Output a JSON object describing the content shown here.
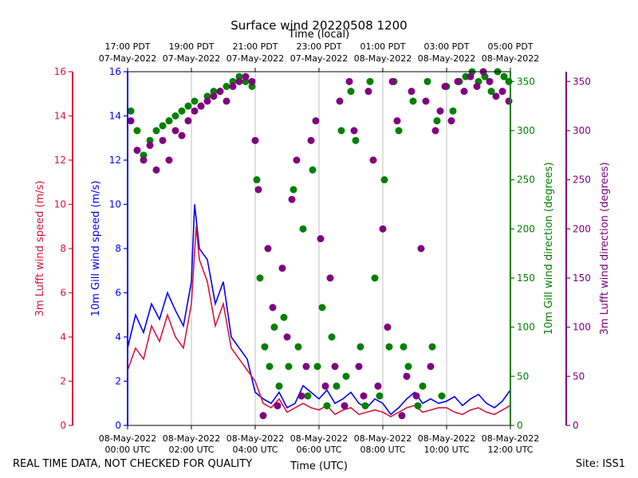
{
  "chart_data": {
    "type": "scatter",
    "title": "Surface wind 20220508 1200",
    "top_xlabel": "Time (local)",
    "xlabel": "Time (UTC)",
    "x_unit": "hours since 08-May-2022 00:00 UTC",
    "xlim": [
      0,
      12
    ],
    "bottom_ticks": [
      {
        "x": 0,
        "date": "08-May-2022",
        "time": "00:00 UTC"
      },
      {
        "x": 2,
        "date": "08-May-2022",
        "time": "02:00 UTC"
      },
      {
        "x": 4,
        "date": "08-May-2022",
        "time": "04:00 UTC"
      },
      {
        "x": 6,
        "date": "08-May-2022",
        "time": "06:00 UTC"
      },
      {
        "x": 8,
        "date": "08-May-2022",
        "time": "08:00 UTC"
      },
      {
        "x": 10,
        "date": "08-May-2022",
        "time": "10:00 UTC"
      },
      {
        "x": 12,
        "date": "08-May-2022",
        "time": "12:00 UTC"
      }
    ],
    "top_ticks": [
      {
        "x": 0,
        "time": "17:00 PDT",
        "date": "07-May-2022"
      },
      {
        "x": 2,
        "time": "19:00 PDT",
        "date": "07-May-2022"
      },
      {
        "x": 4,
        "time": "21:00 PDT",
        "date": "07-May-2022"
      },
      {
        "x": 6,
        "time": "23:00 PDT",
        "date": "07-May-2022"
      },
      {
        "x": 8,
        "time": "01:00 PDT",
        "date": "08-May-2022"
      },
      {
        "x": 10,
        "time": "03:00 PDT",
        "date": "08-May-2022"
      },
      {
        "x": 12,
        "time": "05:00 PDT",
        "date": "08-May-2022"
      }
    ],
    "axes": {
      "lufft_speed": {
        "label": "3m Lufft wind speed (m/s)",
        "ylim": [
          0,
          16
        ],
        "ticks": [
          0,
          2,
          4,
          6,
          8,
          10,
          12,
          14,
          16
        ],
        "color": "#dc143c"
      },
      "gill_speed": {
        "label": "10m Gill wind speed (m/s)",
        "ylim": [
          0,
          16
        ],
        "ticks": [
          0,
          2,
          4,
          6,
          8,
          10,
          12,
          14,
          16
        ],
        "color": "#0000ff"
      },
      "gill_dir": {
        "label": "10m Gill wind direction (degrees)",
        "ylim": [
          0,
          360
        ],
        "ticks": [
          0,
          50,
          100,
          150,
          200,
          250,
          300,
          350
        ],
        "color": "#008000"
      },
      "lufft_dir": {
        "label": "3m Lufft wind direction (degrees)",
        "ylim": [
          0,
          360
        ],
        "ticks": [
          0,
          50,
          100,
          150,
          200,
          250,
          300,
          350
        ],
        "color": "#800080"
      }
    },
    "series": [
      {
        "name": "10m Gill wind speed",
        "type": "line",
        "axis": "gill_speed",
        "color": "#0000ff",
        "x": [
          0.0,
          0.25,
          0.5,
          0.75,
          1.0,
          1.25,
          1.5,
          1.75,
          2.0,
          2.1,
          2.25,
          2.5,
          2.75,
          3.0,
          3.25,
          3.5,
          3.75,
          4.0,
          4.25,
          4.5,
          4.75,
          5.0,
          5.25,
          5.5,
          5.75,
          6.0,
          6.25,
          6.5,
          6.75,
          7.0,
          7.25,
          7.5,
          7.75,
          8.0,
          8.25,
          8.5,
          8.75,
          9.0,
          9.25,
          9.5,
          9.75,
          10.0,
          10.25,
          10.5,
          10.75,
          11.0,
          11.25,
          11.5,
          11.75,
          12.0
        ],
        "values": [
          3.5,
          5.0,
          4.2,
          5.5,
          4.8,
          6.0,
          5.2,
          4.5,
          6.5,
          10.0,
          8.0,
          7.5,
          5.5,
          6.5,
          4.0,
          3.5,
          3.0,
          1.5,
          1.2,
          1.0,
          1.5,
          0.8,
          1.0,
          1.8,
          1.5,
          1.2,
          1.6,
          1.0,
          1.2,
          1.5,
          1.0,
          0.8,
          1.2,
          1.0,
          0.5,
          0.8,
          1.2,
          1.5,
          1.0,
          1.2,
          1.0,
          1.1,
          1.3,
          0.9,
          1.2,
          1.4,
          1.0,
          0.8,
          1.1,
          1.6
        ]
      },
      {
        "name": "3m Lufft wind speed",
        "type": "line",
        "axis": "lufft_speed",
        "color": "#dc143c",
        "x": [
          0.0,
          0.25,
          0.5,
          0.75,
          1.0,
          1.25,
          1.5,
          1.75,
          2.0,
          2.15,
          2.25,
          2.5,
          2.75,
          3.0,
          3.25,
          3.5,
          3.75,
          4.0,
          4.25,
          4.5,
          4.75,
          5.0,
          5.25,
          5.5,
          5.75,
          6.0,
          6.25,
          6.5,
          6.75,
          7.0,
          7.25,
          7.5,
          7.75,
          8.0,
          8.25,
          8.5,
          8.75,
          9.0,
          9.25,
          9.5,
          9.75,
          10.0,
          10.25,
          10.5,
          10.75,
          11.0,
          11.25,
          11.5,
          11.75,
          12.0
        ],
        "values": [
          2.5,
          3.5,
          3.0,
          4.5,
          3.8,
          5.0,
          4.0,
          3.5,
          5.5,
          9.0,
          7.5,
          6.5,
          4.5,
          5.5,
          3.5,
          3.0,
          2.5,
          2.0,
          1.0,
          0.8,
          1.2,
          0.6,
          0.8,
          1.0,
          0.8,
          0.7,
          0.9,
          0.5,
          0.7,
          0.8,
          0.5,
          0.6,
          0.7,
          0.6,
          0.4,
          0.6,
          0.8,
          0.9,
          0.6,
          0.7,
          0.8,
          0.8,
          0.6,
          0.5,
          0.7,
          0.8,
          0.6,
          0.5,
          0.7,
          0.9
        ]
      },
      {
        "name": "10m Gill wind direction",
        "type": "scatter",
        "axis": "gill_dir",
        "color": "#008000",
        "x": [
          0.1,
          0.3,
          0.5,
          0.7,
          0.9,
          1.1,
          1.3,
          1.5,
          1.7,
          1.9,
          2.1,
          2.3,
          2.5,
          2.7,
          2.9,
          3.1,
          3.3,
          3.5,
          3.7,
          3.9,
          4.05,
          4.15,
          4.3,
          4.45,
          4.6,
          4.75,
          4.9,
          5.05,
          5.2,
          5.35,
          5.5,
          5.65,
          5.8,
          5.95,
          6.1,
          6.25,
          6.4,
          6.55,
          6.7,
          6.85,
          7.0,
          7.15,
          7.3,
          7.45,
          7.6,
          7.75,
          7.9,
          8.05,
          8.2,
          8.35,
          8.5,
          8.65,
          8.8,
          8.95,
          9.1,
          9.25,
          9.4,
          9.55,
          9.7,
          9.85,
          10.0,
          10.2,
          10.4,
          10.6,
          10.8,
          11.0,
          11.2,
          11.4,
          11.6,
          11.8,
          11.95
        ],
        "values": [
          320,
          300,
          275,
          290,
          300,
          305,
          310,
          315,
          320,
          325,
          330,
          325,
          335,
          340,
          340,
          345,
          350,
          355,
          350,
          345,
          250,
          150,
          80,
          60,
          100,
          40,
          110,
          60,
          240,
          80,
          200,
          30,
          260,
          60,
          120,
          20,
          90,
          40,
          300,
          50,
          340,
          290,
          80,
          20,
          350,
          150,
          30,
          250,
          80,
          350,
          300,
          80,
          60,
          330,
          20,
          40,
          350,
          80,
          310,
          30,
          345,
          320,
          350,
          355,
          360,
          350,
          355,
          340,
          360,
          355,
          350
        ]
      },
      {
        "name": "3m Lufft wind direction",
        "type": "scatter",
        "axis": "lufft_dir",
        "color": "#800080",
        "x": [
          0.1,
          0.3,
          0.5,
          0.7,
          0.9,
          1.1,
          1.3,
          1.5,
          1.7,
          1.9,
          2.1,
          2.3,
          2.5,
          2.7,
          2.9,
          3.1,
          3.3,
          3.5,
          3.7,
          3.9,
          4.0,
          4.1,
          4.25,
          4.4,
          4.55,
          4.7,
          4.85,
          5.0,
          5.15,
          5.3,
          5.45,
          5.6,
          5.75,
          5.9,
          6.05,
          6.2,
          6.35,
          6.5,
          6.65,
          6.8,
          6.95,
          7.1,
          7.25,
          7.4,
          7.55,
          7.7,
          7.85,
          8.0,
          8.15,
          8.3,
          8.45,
          8.6,
          8.75,
          8.9,
          9.05,
          9.2,
          9.35,
          9.5,
          9.65,
          9.8,
          9.95,
          10.15,
          10.35,
          10.55,
          10.75,
          10.95,
          11.15,
          11.35,
          11.55,
          11.75,
          11.95
        ],
        "values": [
          310,
          280,
          270,
          285,
          260,
          290,
          270,
          300,
          295,
          310,
          320,
          325,
          330,
          335,
          340,
          330,
          345,
          350,
          355,
          350,
          290,
          240,
          10,
          180,
          120,
          20,
          160,
          90,
          230,
          270,
          30,
          60,
          290,
          310,
          190,
          40,
          150,
          60,
          330,
          20,
          350,
          300,
          60,
          30,
          340,
          270,
          40,
          200,
          100,
          350,
          310,
          10,
          50,
          340,
          30,
          180,
          330,
          60,
          300,
          320,
          345,
          310,
          350,
          340,
          355,
          345,
          360,
          350,
          335,
          340,
          330
        ]
      }
    ]
  },
  "footer": {
    "left_note": "REAL TIME DATA, NOT CHECKED FOR QUALITY",
    "site": "Site: ISS1"
  }
}
